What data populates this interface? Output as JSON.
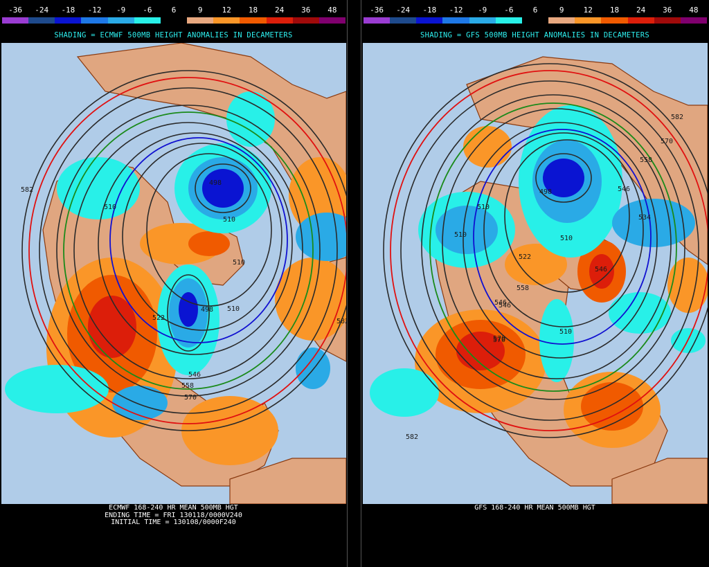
{
  "scale": {
    "labels": [
      "-36",
      "-24",
      "-18",
      "-12",
      "-9",
      "-6",
      "6",
      "9",
      "12",
      "18",
      "24",
      "36",
      "48"
    ],
    "colors": [
      "#9a3cd2",
      "#1e4a8c",
      "#0a14d2",
      "#1e78e6",
      "#2aaae6",
      "#28f0e8",
      "#000000",
      "#e8a880",
      "#fa9628",
      "#f05a00",
      "#dc1e0a",
      "#a00a0a",
      "#80006e"
    ]
  },
  "panels": [
    {
      "shading_title": "SHADING = ECMWF 500MB HEIGHT ANOMALIES IN DECAMETERS",
      "footer_lines": [
        "ECMWF 168-240 HR MEAN 500MB HGT",
        "ENDING TIME = FRI 130118/0000V240",
        "INITIAL TIME = 130108/0000F240"
      ],
      "contour_labels": [
        "582",
        "510",
        "510",
        "510",
        "498",
        "498",
        "510",
        "522",
        "558",
        "570",
        "582",
        "546"
      ]
    },
    {
      "shading_title": "SHADING = GFS 500MB HEIGHT ANOMALIES IN DECAMETERS",
      "footer_lines": [
        "GFS 168-240 HR MEAN 500MB HGT"
      ],
      "contour_labels": [
        "582",
        "570",
        "558",
        "546",
        "534",
        "510",
        "510",
        "498",
        "510",
        "522",
        "546",
        "558",
        "570",
        "546",
        "510",
        "582",
        "546",
        "570"
      ]
    }
  ],
  "colors": {
    "ocean": "#b0cce8",
    "land": "#e0a680",
    "border": "#8a3a10",
    "contour": "#2a2a2a",
    "ridge_line": "#e01010",
    "green_line": "#1a8a1a",
    "blue_line": "#1010d0",
    "title_text": "#2ef0f0"
  }
}
